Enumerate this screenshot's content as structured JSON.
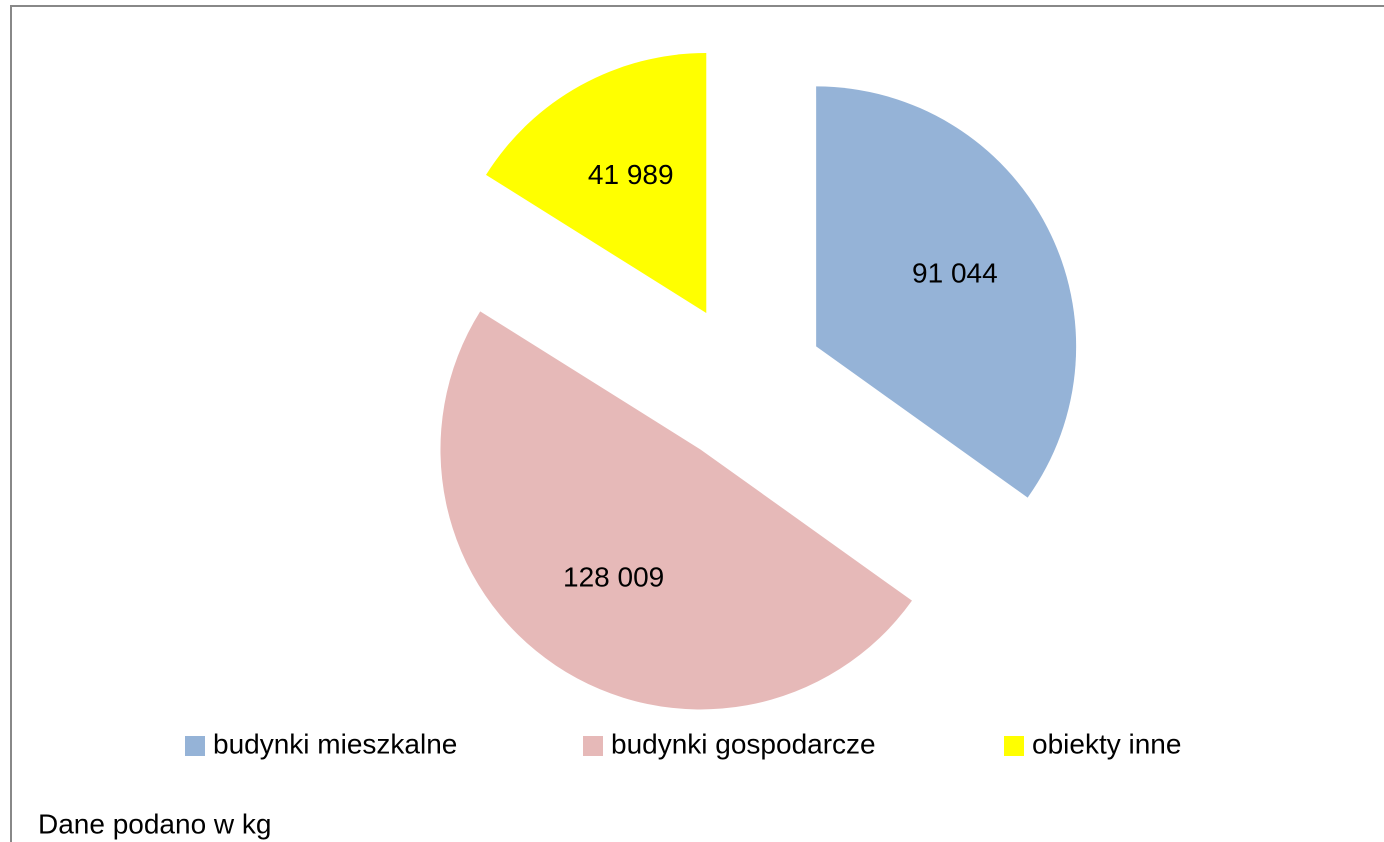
{
  "chart_data": {
    "type": "pie",
    "categories": [
      "budynki mieszkalne",
      "budynki gospodarcze",
      "obiekty inne"
    ],
    "values": [
      91044,
      128009,
      41989
    ],
    "value_labels": [
      "91 044",
      "128 009",
      "41 989"
    ],
    "colors": [
      "#95b3d7",
      "#e6b9b8",
      "#ffff00"
    ],
    "legend": "bottom",
    "annotation": "Dane podano w kg"
  }
}
